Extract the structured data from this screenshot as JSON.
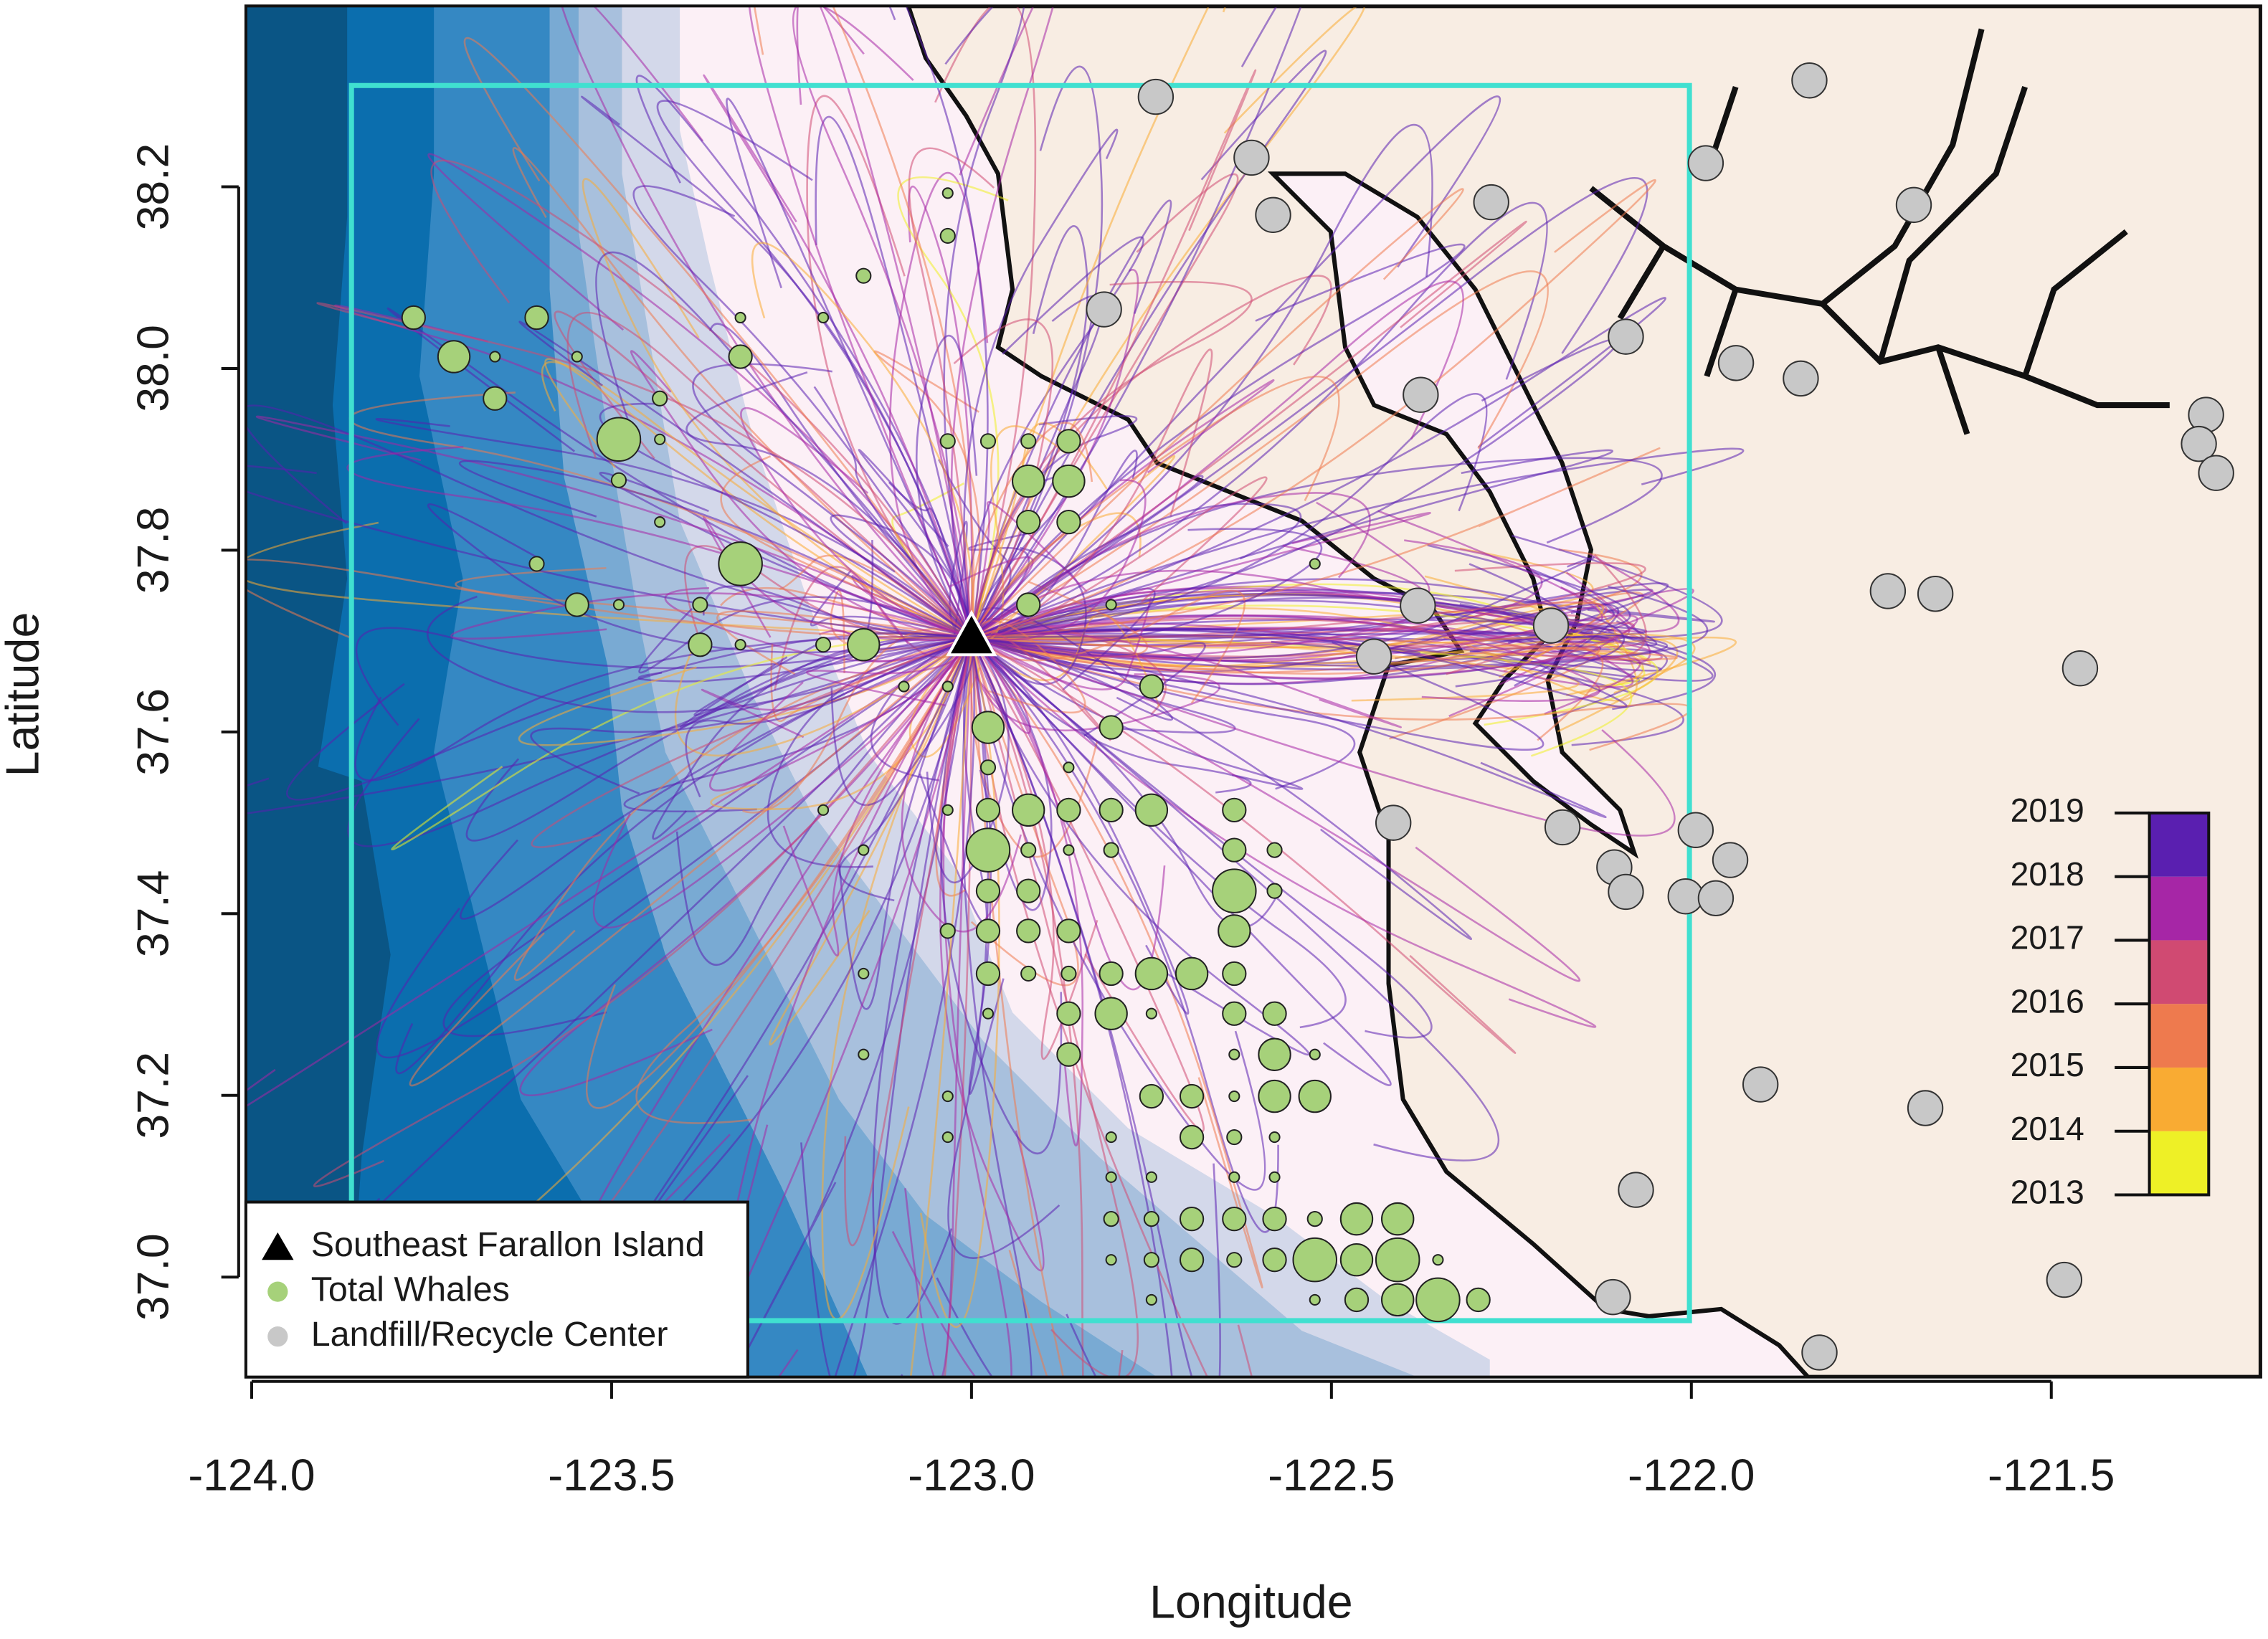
{
  "chart_data": {
    "type": "scatter",
    "xlabel": "Longitude",
    "ylabel": "Latitude",
    "xlim": [
      -124.008,
      -121.209
    ],
    "ylim": [
      36.89,
      38.399
    ],
    "xticks": [
      {
        "value": -124,
        "label": "-124.0"
      },
      -123.5,
      {
        "value": -123,
        "label": "-123.0"
      },
      -122.5,
      {
        "value": -122,
        "label": "-122.0"
      },
      -121.5
    ],
    "yticks": [
      {
        "value": 37,
        "label": "37.0"
      },
      37.2,
      37.4,
      37.6,
      37.8,
      {
        "value": 38,
        "label": "38.0"
      },
      38.2
    ],
    "legend_location": "bottom-left",
    "series": [
      {
        "name": "Southeast Farallon Island",
        "marker": "triangle",
        "color": "#000000",
        "x": [
          -123.0
        ],
        "values": [
          37.704
        ]
      },
      {
        "name": "Total Whales",
        "marker": "circle",
        "color": "#a6d17a",
        "x": [
          -122.977,
          -122.977,
          -122.977,
          -122.921,
          -122.865,
          -122.806,
          -122.75,
          -122.635,
          -123.033,
          -122.977,
          -122.921,
          -122.865,
          -122.806,
          -122.635,
          -122.579,
          -122.977,
          -122.921,
          -122.635,
          -122.579,
          -123.033,
          -122.977,
          -122.921,
          -122.865,
          -122.635,
          -122.977,
          -122.921,
          -122.865,
          -122.806,
          -122.75,
          -122.694,
          -122.635,
          -122.977,
          -122.865,
          -122.806,
          -122.75,
          -122.635,
          -122.579,
          -122.865,
          -122.635,
          -122.579,
          -122.523,
          -122.75,
          -122.694,
          -122.635,
          -122.579,
          -122.523,
          -123.033,
          -122.806,
          -122.694,
          -122.635,
          -122.579,
          -122.806,
          -122.75,
          -122.635,
          -122.579,
          -122.806,
          -122.75,
          -122.694,
          -122.635,
          -122.579,
          -122.523,
          -122.465,
          -122.408,
          -122.806,
          -122.75,
          -122.694,
          -122.635,
          -122.579,
          -122.523,
          -122.465,
          -122.408,
          -122.352,
          -122.75,
          -122.523,
          -122.465,
          -122.408,
          -122.352,
          -122.296,
          -122.921,
          -122.865,
          -122.921,
          -122.865,
          -122.977,
          -123.033,
          -122.921,
          -122.865,
          -122.921,
          -122.806,
          -122.75,
          -122.806,
          -122.865,
          -123.033,
          -123.094,
          -123.775,
          -123.719,
          -123.662,
          -123.604,
          -123.548,
          -123.662,
          -123.49,
          -123.433,
          -123.433,
          -123.49,
          -123.433,
          -123.321,
          -123.604,
          -123.548,
          -123.49,
          -123.377,
          -123.377,
          -123.321,
          -123.206,
          -123.15,
          -123.321,
          -123.206,
          -123.321,
          -123.15,
          -123.033,
          -123.033,
          -123.206,
          -123.15,
          -123.15,
          -123.15,
          -123.033,
          -122.523
        ],
        "values": [
          37.605,
          37.561,
          37.514,
          37.514,
          37.514,
          37.514,
          37.514,
          37.514,
          37.514,
          37.47,
          37.47,
          37.47,
          37.47,
          37.47,
          37.47,
          37.425,
          37.425,
          37.425,
          37.425,
          37.381,
          37.381,
          37.381,
          37.381,
          37.381,
          37.334,
          37.334,
          37.334,
          37.334,
          37.334,
          37.334,
          37.334,
          37.29,
          37.29,
          37.29,
          37.29,
          37.29,
          37.29,
          37.245,
          37.245,
          37.245,
          37.245,
          37.199,
          37.199,
          37.199,
          37.199,
          37.199,
          37.199,
          37.154,
          37.154,
          37.154,
          37.154,
          37.11,
          37.11,
          37.11,
          37.11,
          37.064,
          37.064,
          37.064,
          37.064,
          37.064,
          37.064,
          37.064,
          37.064,
          37.019,
          37.019,
          37.019,
          37.019,
          37.019,
          37.019,
          37.019,
          37.019,
          37.019,
          36.975,
          36.975,
          36.975,
          36.975,
          36.975,
          36.975,
          37.876,
          37.876,
          37.92,
          37.92,
          37.92,
          37.92,
          37.831,
          37.831,
          37.74,
          37.74,
          37.65,
          37.605,
          37.561,
          37.65,
          37.65,
          38.056,
          38.013,
          38.013,
          38.056,
          38.013,
          37.967,
          37.922,
          37.967,
          37.922,
          37.877,
          37.831,
          37.785,
          37.785,
          37.74,
          37.74,
          37.74,
          37.696,
          37.696,
          37.696,
          37.696,
          38.056,
          38.056,
          38.013,
          38.102,
          38.146,
          38.193,
          37.514,
          37.47,
          37.334,
          37.245,
          37.154,
          37.785
        ],
        "sizes": [
          4,
          2,
          3,
          4,
          3,
          3,
          4,
          3,
          1,
          5,
          2,
          1,
          2,
          3,
          2,
          3,
          3,
          5,
          2,
          2,
          3,
          3,
          3,
          4,
          3,
          2,
          2,
          3,
          4,
          4,
          3,
          1,
          3,
          4,
          1,
          3,
          3,
          3,
          1,
          4,
          1,
          3,
          3,
          1,
          4,
          4,
          1,
          1,
          3,
          2,
          1,
          1,
          1,
          1,
          1,
          2,
          2,
          3,
          3,
          3,
          2,
          4,
          4,
          1,
          2,
          3,
          2,
          3,
          5,
          4,
          5,
          1,
          1,
          1,
          3,
          4,
          5,
          3,
          4,
          4,
          2,
          3,
          2,
          2,
          3,
          3,
          3,
          1,
          3,
          3,
          1,
          1,
          1,
          3,
          4,
          1,
          3,
          1,
          3,
          5,
          2,
          1,
          2,
          1,
          5,
          2,
          3,
          1,
          2,
          3,
          1,
          2,
          4,
          1,
          1,
          3,
          2,
          2,
          1,
          1,
          1,
          1,
          1,
          1,
          1
        ]
      },
      {
        "name": "Landfill/Recycle Center",
        "marker": "circle",
        "color": "#c8c8c8",
        "x": [
          -122.744,
          -122.611,
          -122.581,
          -122.278,
          -122.816,
          -121.98,
          -121.836,
          -121.691,
          -122.091,
          -121.938,
          -121.848,
          -122.376,
          -121.285,
          -121.295,
          -121.271,
          -121.727,
          -121.661,
          -122.195,
          -122.441,
          -122.38,
          -121.46,
          -122.414,
          -122.179,
          -122.107,
          -122.091,
          -121.994,
          -121.946,
          -122.008,
          -121.966,
          -121.904,
          -121.675,
          -122.077,
          -121.482,
          -122.109,
          -121.822
        ],
        "values": [
          38.299,
          38.232,
          38.169,
          38.183,
          38.065,
          38.226,
          38.317,
          38.18,
          38.035,
          38.006,
          37.989,
          37.971,
          37.949,
          37.917,
          37.885,
          37.755,
          37.752,
          37.717,
          37.683,
          37.739,
          37.67,
          37.5,
          37.495,
          37.451,
          37.424,
          37.492,
          37.459,
          37.419,
          37.417,
          37.212,
          37.186,
          37.096,
          36.997,
          36.978,
          36.917
        ]
      }
    ],
    "colorbar": {
      "ticks": [
        2013,
        2014,
        2015,
        2016,
        2017,
        2018,
        2019
      ],
      "colors": [
        "#eef026",
        "#f9ab33",
        "#ee7a4e",
        "#d04a72",
        "#a626a6",
        "#5a1fb0"
      ]
    }
  }
}
